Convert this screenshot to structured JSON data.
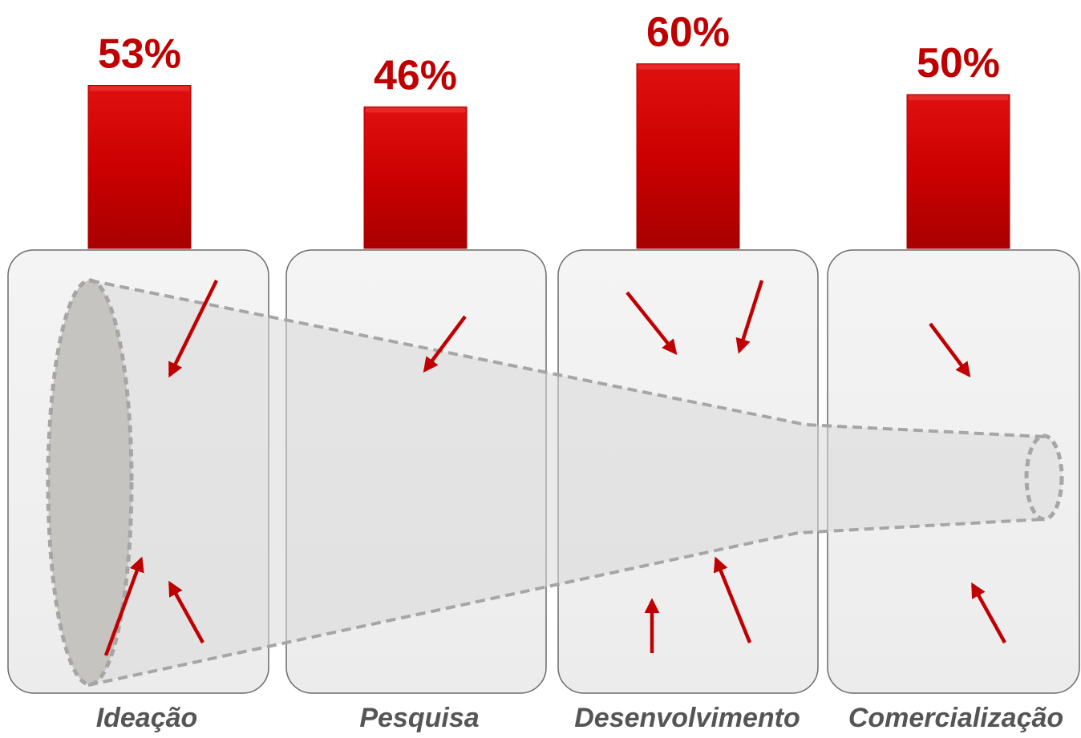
{
  "chart_data": {
    "type": "bar",
    "categories": [
      "Ideação",
      "Pesquisa",
      "Desenvolvimento",
      "Comercialização"
    ],
    "values": [
      53,
      46,
      60,
      50
    ],
    "value_labels": [
      "53%",
      "46%",
      "60%",
      "50%"
    ],
    "ylim": [
      0,
      100
    ],
    "grid": false,
    "legend": "none",
    "title": "",
    "xlabel": "",
    "ylabel": ""
  },
  "colors": {
    "bar": "#cc0000",
    "value_label": "#c00000",
    "stage_label": "#555555",
    "panel_fill": "#f2f2f2",
    "panel_stroke": "#666666",
    "funnel_fill": "#c8c6c2",
    "funnel_dash": "#a6a6a6",
    "arrow": "#c00000"
  },
  "decoration": {
    "funnel": "dashed funnel narrowing left to right",
    "arrows": "red inward-pointing arrows around the funnel"
  }
}
